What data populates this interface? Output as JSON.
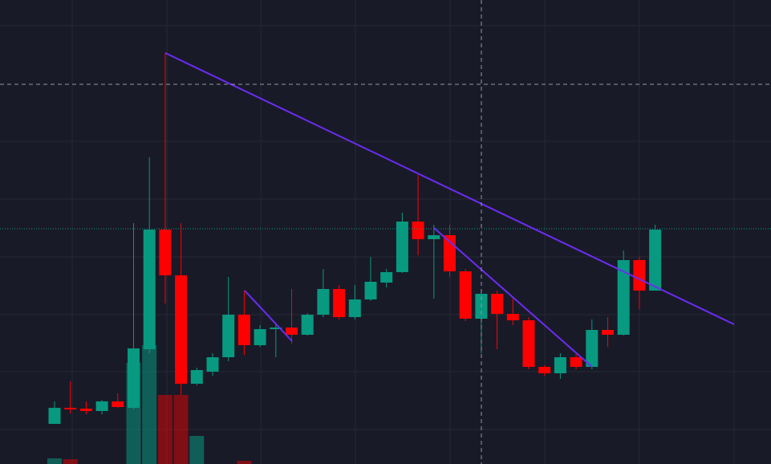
{
  "chart_data": {
    "type": "candlestick",
    "ylim": [
      0,
      578
    ],
    "up_color": "#089981",
    "down_color": "#ff0000",
    "open": [
      50,
      70,
      69,
      66,
      78,
      70,
      143,
      292,
      235,
      100,
      115,
      133,
      186,
      148,
      168,
      170,
      161,
      186,
      218,
      183,
      205,
      226,
      239,
      302,
      280,
      285,
      240,
      181,
      212,
      187,
      179,
      121,
      113,
      133,
      121,
      167,
      161,
      254,
      216
    ],
    "high": [
      78,
      103,
      78,
      80,
      88,
      300,
      382,
      512,
      300,
      120,
      138,
      233,
      216,
      173,
      173,
      218,
      188,
      243,
      223,
      223,
      258,
      243,
      313,
      360,
      298,
      298,
      243,
      216,
      216,
      206,
      183,
      123,
      138,
      138,
      180,
      183,
      266,
      258,
      298
    ],
    "low": [
      50,
      63,
      62,
      62,
      70,
      68,
      138,
      200,
      86,
      98,
      110,
      128,
      136,
      146,
      133,
      150,
      160,
      183,
      180,
      180,
      203,
      220,
      238,
      260,
      206,
      233,
      178,
      138,
      143,
      173,
      118,
      110,
      106,
      118,
      118,
      146,
      160,
      193,
      216
    ],
    "close": [
      70,
      68,
      66,
      78,
      71,
      144,
      292,
      235,
      100,
      117,
      133,
      186,
      148,
      168,
      170,
      161,
      186,
      218,
      183,
      205,
      227,
      239,
      302,
      280,
      285,
      240,
      181,
      212,
      187,
      179,
      121,
      113,
      133,
      121,
      167,
      161,
      254,
      216,
      292
    ],
    "volume": [
      7,
      6,
      null,
      null,
      null,
      126,
      148,
      86,
      86,
      35,
      null,
      null,
      4,
      null,
      null,
      null,
      null,
      null,
      null,
      null,
      null,
      null,
      null,
      null,
      null,
      null,
      null,
      null,
      null,
      null,
      null,
      null,
      null,
      null,
      null,
      null,
      null,
      null,
      null
    ]
  }
}
